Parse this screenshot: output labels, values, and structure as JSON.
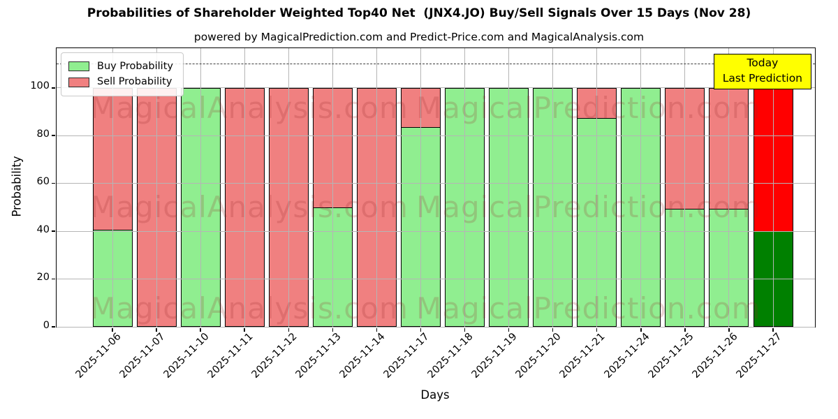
{
  "title": "Probabilities of Shareholder Weighted Top40 Net  (JNX4.JO) Buy/Sell Signals Over 15 Days (Nov 28)",
  "subtitle": "powered by MagicalPrediction.com and Predict-Price.com and MagicalAnalysis.com",
  "legend": {
    "buy_label": "Buy Probability",
    "sell_label": "Sell Probability"
  },
  "annotation": {
    "line1": "Today",
    "line2": "Last Prediction"
  },
  "watermarks": {
    "left": "MagicalAnalysis.com",
    "right": "MagicalPrediction.com"
  },
  "colors": {
    "buy": "#90ee90",
    "sell": "#f08080",
    "today_buy": "#008000",
    "today_sell": "#ff0000",
    "annotation_bg": "#ffff00",
    "grid": "#b5b5b5",
    "bar_edge": "#000000"
  },
  "chart_data": {
    "type": "bar",
    "stacked": true,
    "title": "Probabilities of Shareholder Weighted Top40 Net  (JNX4.JO) Buy/Sell Signals Over 15 Days (Nov 28)",
    "xlabel": "Days",
    "ylabel": "Probability",
    "categories": [
      "2025-11-06",
      "2025-11-07",
      "2025-11-10",
      "2025-11-11",
      "2025-11-12",
      "2025-11-13",
      "2025-11-14",
      "2025-11-17",
      "2025-11-18",
      "2025-11-19",
      "2025-11-20",
      "2025-11-21",
      "2025-11-24",
      "2025-11-25",
      "2025-11-26",
      "2025-11-27"
    ],
    "series": [
      {
        "name": "Buy Probability",
        "color": "#90ee90",
        "values": [
          40.5,
          0,
          100,
          0,
          0,
          50,
          0,
          83.5,
          100,
          100,
          100,
          87.5,
          100,
          49.5,
          49.5,
          40
        ]
      },
      {
        "name": "Sell Probability",
        "color": "#f08080",
        "values": [
          59.5,
          100,
          0,
          100,
          100,
          50,
          100,
          16.5,
          0,
          0,
          0,
          12.5,
          0,
          50.5,
          50.5,
          60
        ]
      }
    ],
    "today_bar": {
      "index": 15,
      "buy_color": "#008000",
      "sell_color": "#ff0000"
    },
    "yticks": [
      0,
      20,
      40,
      60,
      80,
      100
    ],
    "ylim": [
      0,
      116.6
    ],
    "dashed_line_y": 110,
    "grid": true,
    "legend_position": "upper-left"
  }
}
